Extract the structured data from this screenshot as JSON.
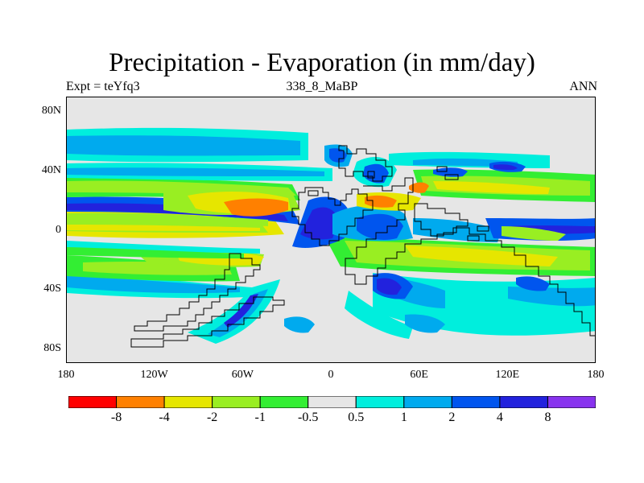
{
  "title": "Precipitation - Evaporation (in mm/day)",
  "subtitle_left": "Expt = teYfq3",
  "subtitle_center": "338_8_MaBP",
  "subtitle_right": "ANN",
  "map": {
    "lon_range": [
      -180,
      180
    ],
    "lat_range": [
      -90,
      90
    ],
    "lat_ticks": [
      {
        "lat": 80,
        "label": "80N"
      },
      {
        "lat": 40,
        "label": "40N"
      },
      {
        "lat": 0,
        "label": "0"
      },
      {
        "lat": -40,
        "label": "40S"
      },
      {
        "lat": -80,
        "label": "80S"
      }
    ],
    "lon_ticks": [
      {
        "lon": -180,
        "label": "180"
      },
      {
        "lon": -120,
        "label": "120W"
      },
      {
        "lon": -60,
        "label": "60W"
      },
      {
        "lon": 0,
        "label": "0"
      },
      {
        "lon": 60,
        "label": "60E"
      },
      {
        "lon": 120,
        "label": "120E"
      },
      {
        "lon": 180,
        "label": "180"
      }
    ],
    "colorbar": {
      "colors": [
        "#ff0000",
        "#ff8000",
        "#e6e600",
        "#99ee22",
        "#33ee33",
        "#e6e6e6",
        "#00eedd",
        "#00aaee",
        "#0055ee",
        "#2222dd",
        "#8833ee"
      ],
      "labels": [
        "-8",
        "-4",
        "-2",
        "-1",
        "-0.5",
        "0.5",
        "1",
        "2",
        "4",
        "8"
      ]
    },
    "background_color": "#e6e6e6"
  }
}
